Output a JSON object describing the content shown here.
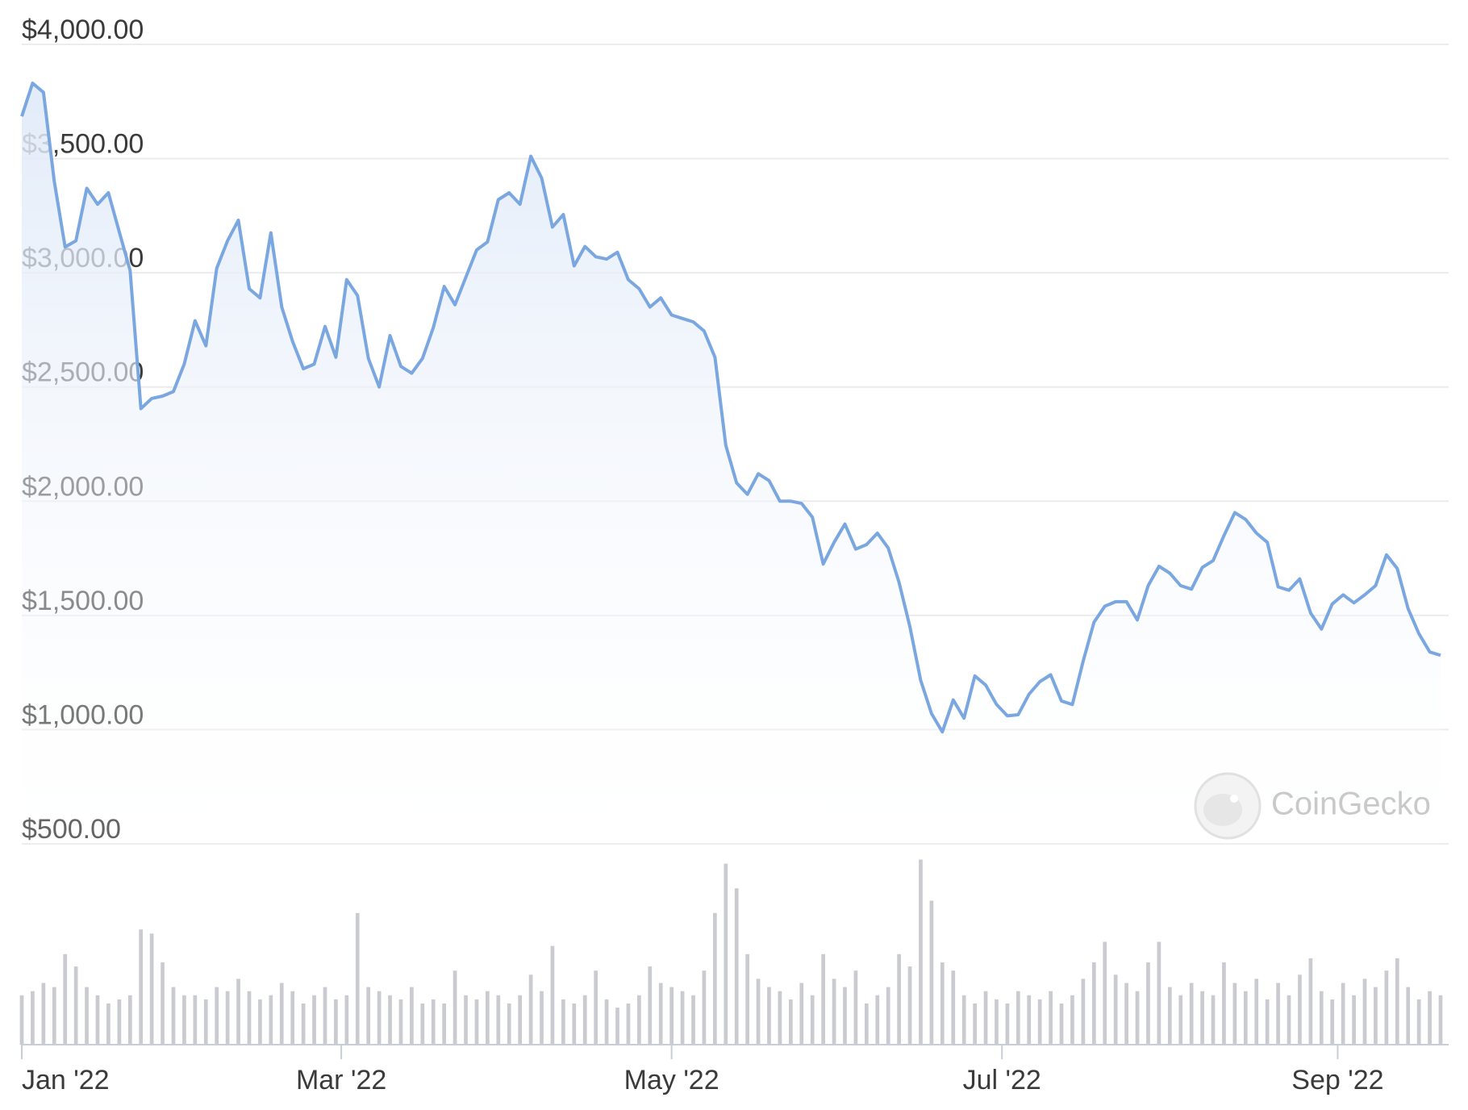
{
  "chart_data": [
    {
      "type": "line",
      "color": "#7ba7e1",
      "watermark": "CoinGecko",
      "grid": true,
      "values": [
        3685,
        3830,
        3790,
        3400,
        3113,
        3140,
        3370,
        3300,
        3350,
        3180,
        3010,
        2405,
        2450,
        2460,
        2480,
        2600,
        2790,
        2680,
        3020,
        3140,
        3230,
        2930,
        2890,
        3175,
        2850,
        2700,
        2580,
        2600,
        2765,
        2630,
        2970,
        2900,
        2625,
        2500,
        2725,
        2590,
        2560,
        2625,
        2760,
        2940,
        2860,
        2980,
        3100,
        3135,
        3320,
        3350,
        3300,
        3510,
        3415,
        3200,
        3255,
        3030,
        3115,
        3070,
        3060,
        3090,
        2970,
        2930,
        2850,
        2890,
        2815,
        2800,
        2785,
        2745,
        2630,
        2245,
        2080,
        2030,
        2120,
        2090,
        2000,
        2000,
        1990,
        1930,
        1725,
        1820,
        1900,
        1790,
        1810,
        1860,
        1795,
        1645,
        1450,
        1215,
        1070,
        990,
        1130,
        1050,
        1235,
        1195,
        1110,
        1060,
        1065,
        1155,
        1210,
        1240,
        1125,
        1110,
        1300,
        1470,
        1540,
        1560,
        1560,
        1480,
        1630,
        1715,
        1685,
        1630,
        1615,
        1710,
        1740,
        1850,
        1950,
        1920,
        1860,
        1820,
        1625,
        1610,
        1660,
        1510,
        1440,
        1550,
        1590,
        1555,
        1590,
        1630,
        1765,
        1705,
        1530,
        1420,
        1340,
        1325
      ],
      "xlim": [
        0,
        131
      ],
      "xticks": [
        {
          "value": 0,
          "label": "Jan '22"
        },
        {
          "value": 29.5,
          "label": "Mar '22"
        },
        {
          "value": 60,
          "label": "May '22"
        },
        {
          "value": 90.5,
          "label": "Jul '22"
        },
        {
          "value": 121.5,
          "label": "Sep '22"
        }
      ],
      "ylim": [
        500,
        4000
      ],
      "yticks": [
        {
          "value": 500,
          "label": "$500.00"
        },
        {
          "value": 1000,
          "label": "$1,000.00"
        },
        {
          "value": 1500,
          "label": "$1,500.00"
        },
        {
          "value": 2000,
          "label": "$2,000.00"
        },
        {
          "value": 2500,
          "label": "$2,500.00"
        },
        {
          "value": 3000,
          "label": "$3,000.00"
        },
        {
          "value": 3500,
          "label": "$3,500.00"
        },
        {
          "value": 4000,
          "label": "$4,000.00"
        }
      ]
    },
    {
      "type": "bar",
      "color": "#c9cbd0",
      "values": [
        12,
        13,
        15,
        14,
        22,
        19,
        14,
        12,
        10,
        11,
        12,
        28,
        27,
        20,
        14,
        12,
        12,
        11,
        14,
        13,
        16,
        13,
        11,
        12,
        15,
        13,
        10,
        12,
        14,
        11,
        12,
        32,
        14,
        13,
        12,
        11,
        14,
        10,
        11,
        10,
        18,
        12,
        11,
        13,
        12,
        10,
        12,
        17,
        13,
        24,
        11,
        10,
        12,
        18,
        11,
        9,
        10,
        12,
        19,
        15,
        14,
        13,
        12,
        18,
        32,
        44,
        38,
        22,
        16,
        14,
        13,
        11,
        15,
        12,
        22,
        16,
        14,
        18,
        10,
        12,
        14,
        22,
        19,
        45,
        35,
        20,
        18,
        12,
        10,
        13,
        11,
        10,
        13,
        12,
        11,
        13,
        10,
        12,
        16,
        20,
        25,
        17,
        15,
        13,
        20,
        25,
        14,
        12,
        15,
        13,
        12,
        20,
        15,
        13,
        16,
        11,
        15,
        12,
        17,
        21,
        13,
        11,
        15,
        12,
        16,
        14,
        18,
        21,
        14,
        11,
        13,
        12
      ],
      "xlim": [
        0,
        131
      ],
      "ylim": [
        0,
        50
      ]
    }
  ]
}
